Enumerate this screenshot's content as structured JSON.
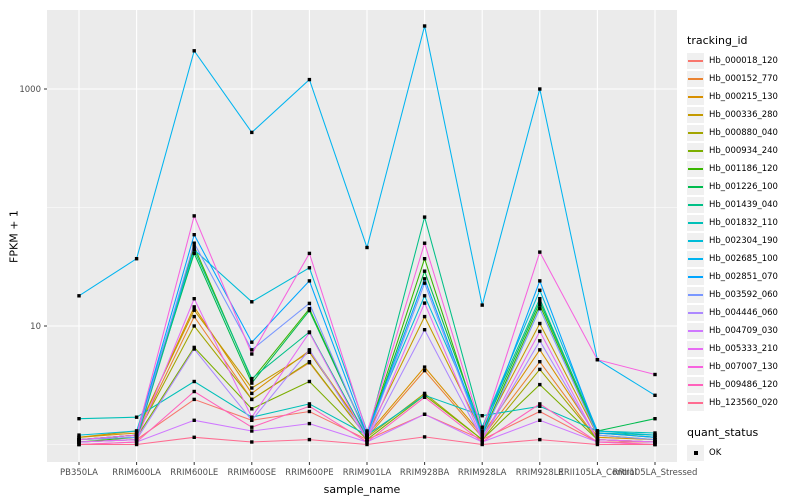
{
  "chart_data": {
    "type": "line",
    "title": "",
    "xlabel": "sample_name",
    "ylabel": "FPKM + 1",
    "y_scale": "log10",
    "y_tick_labels": [
      "10",
      "1000"
    ],
    "y_ticks": [
      10,
      1000
    ],
    "y_minor": [
      1,
      100
    ],
    "ylim": [
      0.72,
      4600
    ],
    "grid": "on",
    "legend_position": "right",
    "point_shape": "filled-square",
    "categories": [
      "PB350LA",
      "RRIM600LA",
      "RRIM600LE",
      "RRIM600SE",
      "RRIM600PE",
      "RRIM901LA",
      "RRIM928BA",
      "RRIM928LA",
      "RRIM928LE",
      "RRII105LA_Control",
      "RRII105LA_Stressed"
    ],
    "series": [
      {
        "name": "Hb_000018_120",
        "color": "#F8766D",
        "values": [
          1.05,
          1.1,
          2.4,
          1.6,
          1.9,
          1.1,
          1.8,
          1.1,
          1.9,
          1.05,
          1.05
        ]
      },
      {
        "name": "Hb_000152_770",
        "color": "#EA8331",
        "values": [
          1.1,
          1.2,
          12,
          2.4,
          4.9,
          1.15,
          4.2,
          1.15,
          5.0,
          1.1,
          1.05
        ]
      },
      {
        "name": "Hb_000215_130",
        "color": "#D89000",
        "values": [
          1.15,
          1.25,
          14.5,
          2.7,
          6.2,
          1.2,
          4.5,
          1.2,
          6.3,
          1.15,
          1.1
        ]
      },
      {
        "name": "Hb_000336_280",
        "color": "#C49A00",
        "values": [
          1.15,
          1.3,
          13.6,
          3.0,
          6.0,
          1.2,
          12,
          1.25,
          10.5,
          1.2,
          1.1
        ]
      },
      {
        "name": "Hb_000880_040",
        "color": "#A3A500",
        "values": [
          1.1,
          1.2,
          10,
          2.4,
          5.0,
          1.15,
          2.7,
          1.1,
          4.3,
          1.1,
          1.05
        ]
      },
      {
        "name": "Hb_000934_240",
        "color": "#7CAE00",
        "values": [
          1.1,
          1.15,
          6.6,
          2.0,
          3.4,
          1.1,
          2.6,
          1.1,
          3.2,
          1.1,
          1.05
        ]
      },
      {
        "name": "Hb_001186_120",
        "color": "#39B600",
        "values": [
          1.05,
          1.15,
          47,
          3.5,
          14,
          1.2,
          37,
          1.2,
          15,
          1.25,
          1.15
        ]
      },
      {
        "name": "Hb_001226_100",
        "color": "#00BB4E",
        "values": [
          1.1,
          1.2,
          41,
          3.3,
          13.5,
          1.2,
          29,
          1.3,
          16,
          1.3,
          1.65
        ]
      },
      {
        "name": "Hb_001439_040",
        "color": "#00C087",
        "values": [
          1.05,
          1.1,
          44,
          3.6,
          8.9,
          1.15,
          83,
          1.4,
          17,
          1.25,
          1.2
        ]
      },
      {
        "name": "Hb_001832_110",
        "color": "#00C0B8",
        "values": [
          1.65,
          1.7,
          3.4,
          1.7,
          2.2,
          1.2,
          2.6,
          1.75,
          2.1,
          1.3,
          1.25
        ]
      },
      {
        "name": "Hb_002304_190",
        "color": "#00BCD8",
        "values": [
          1.2,
          1.3,
          44,
          16,
          31,
          1.3,
          18,
          1.4,
          20,
          1.3,
          1.2
        ]
      },
      {
        "name": "Hb_002685_100",
        "color": "#00B4F0",
        "values": [
          18,
          37,
          2100,
          430,
          1200,
          46,
          3400,
          15,
          1000,
          5.2,
          2.6
        ]
      },
      {
        "name": "Hb_002851_070",
        "color": "#00A5FF",
        "values": [
          1.1,
          1.2,
          59,
          7.3,
          24,
          1.2,
          25,
          1.2,
          24,
          1.25,
          1.15
        ]
      },
      {
        "name": "Hb_003592_060",
        "color": "#7997FF",
        "values": [
          1.1,
          1.15,
          50,
          6.3,
          15.5,
          1.15,
          23,
          1.15,
          14,
          1.2,
          1.1
        ]
      },
      {
        "name": "Hb_004446_060",
        "color": "#AC88FF",
        "values": [
          1.05,
          1.1,
          6.4,
          1.6,
          6.3,
          1.1,
          9.3,
          1.1,
          7.5,
          1.1,
          1.05
        ]
      },
      {
        "name": "Hb_004709_030",
        "color": "#CF78FF",
        "values": [
          1.0,
          1.05,
          1.6,
          1.3,
          1.5,
          1.05,
          1.8,
          1.05,
          1.6,
          1.05,
          1.0
        ]
      },
      {
        "name": "Hb_005333_210",
        "color": "#E76BF3",
        "values": [
          1.05,
          1.1,
          17,
          1.7,
          8.8,
          1.1,
          15.6,
          1.1,
          9.0,
          1.1,
          1.05
        ]
      },
      {
        "name": "Hb_007007_130",
        "color": "#F763DF",
        "values": [
          1.1,
          1.2,
          85,
          5.8,
          41,
          1.25,
          50,
          1.3,
          42,
          5.2,
          3.9
        ]
      },
      {
        "name": "Hb_009486_120",
        "color": "#FF62BC",
        "values": [
          1.0,
          1.05,
          2.8,
          1.4,
          2.1,
          1.05,
          2.5,
          1.05,
          2.2,
          1.05,
          1.0
        ]
      },
      {
        "name": "Hb_123560_020",
        "color": "#FF6C91",
        "values": [
          1.0,
          1.0,
          1.15,
          1.05,
          1.1,
          1.0,
          1.16,
          1.0,
          1.1,
          1.0,
          1.0
        ]
      }
    ],
    "legend": {
      "series_title": "tracking_id",
      "shape_title": "quant_status",
      "shape_label": "OK"
    }
  },
  "colors": {
    "panel_bg": "#EBEBEB",
    "grid": "#FFFFFF",
    "tick_label": "#4D4D4D",
    "tick_mark": "#333333",
    "axis_title": "#000000",
    "legend_key_bg": "#F0F0F0",
    "point": "#000000"
  }
}
